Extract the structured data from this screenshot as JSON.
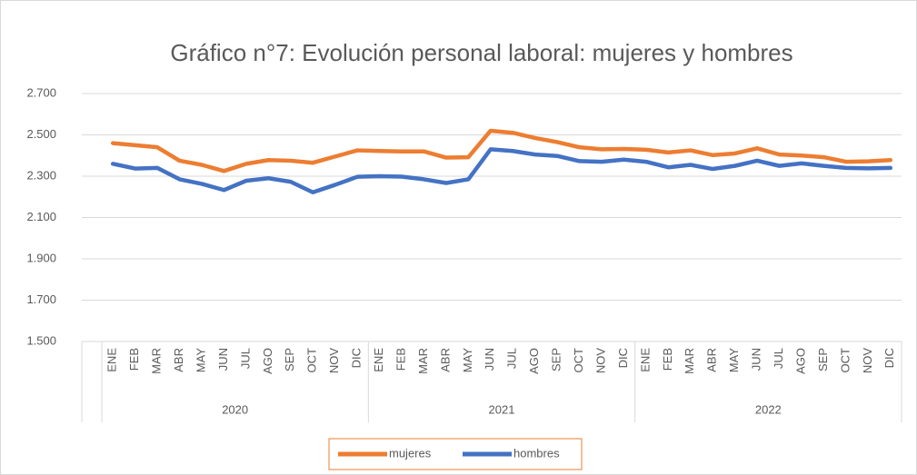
{
  "chart_data": {
    "type": "line",
    "title": "Gráfico n°7: Evolución personal laboral: mujeres y hombres",
    "categories": [
      "ENE",
      "FEB",
      "MAR",
      "ABR",
      "MAY",
      "JUN",
      "JUL",
      "AGO",
      "SEP",
      "OCT",
      "NOV",
      "DIC",
      "ENE",
      "FEB",
      "MAR",
      "ABR",
      "MAY",
      "JUN",
      "JUL",
      "AGO",
      "SEP",
      "OCT",
      "NOV",
      "DIC",
      "ENE",
      "FEB",
      "MAR",
      "ABR",
      "MAY",
      "JUN",
      "JUL",
      "AGO",
      "SEP",
      "OCT",
      "NOV",
      "DIC"
    ],
    "category_groups": [
      "2020",
      "2021",
      "2022"
    ],
    "series": [
      {
        "name": "mujeres",
        "color": "#ed7d31",
        "values": [
          2460,
          2450,
          2440,
          2375,
          2355,
          2325,
          2360,
          2378,
          2375,
          2365,
          2395,
          2425,
          2422,
          2420,
          2420,
          2390,
          2392,
          2520,
          2510,
          2485,
          2465,
          2440,
          2430,
          2432,
          2428,
          2415,
          2425,
          2402,
          2410,
          2435,
          2405,
          2400,
          2392,
          2370,
          2372,
          2378
        ]
      },
      {
        "name": "hombres",
        "color": "#4472c4",
        "values": [
          2360,
          2337,
          2340,
          2285,
          2263,
          2233,
          2278,
          2290,
          2273,
          2222,
          2258,
          2297,
          2300,
          2298,
          2285,
          2267,
          2285,
          2430,
          2422,
          2405,
          2398,
          2373,
          2370,
          2380,
          2370,
          2343,
          2355,
          2335,
          2350,
          2375,
          2350,
          2362,
          2350,
          2340,
          2338,
          2340
        ]
      }
    ],
    "ylim": [
      1500,
      2700
    ],
    "yticks": [
      {
        "value": 1500,
        "label": "1.500"
      },
      {
        "value": 1700,
        "label": "1.700"
      },
      {
        "value": 1900,
        "label": "1.900"
      },
      {
        "value": 2100,
        "label": "2.100"
      },
      {
        "value": 2300,
        "label": "2.300"
      },
      {
        "value": 2500,
        "label": "2.500"
      },
      {
        "value": 2700,
        "label": "2.700"
      }
    ],
    "grid": true,
    "legend": "bottom"
  }
}
